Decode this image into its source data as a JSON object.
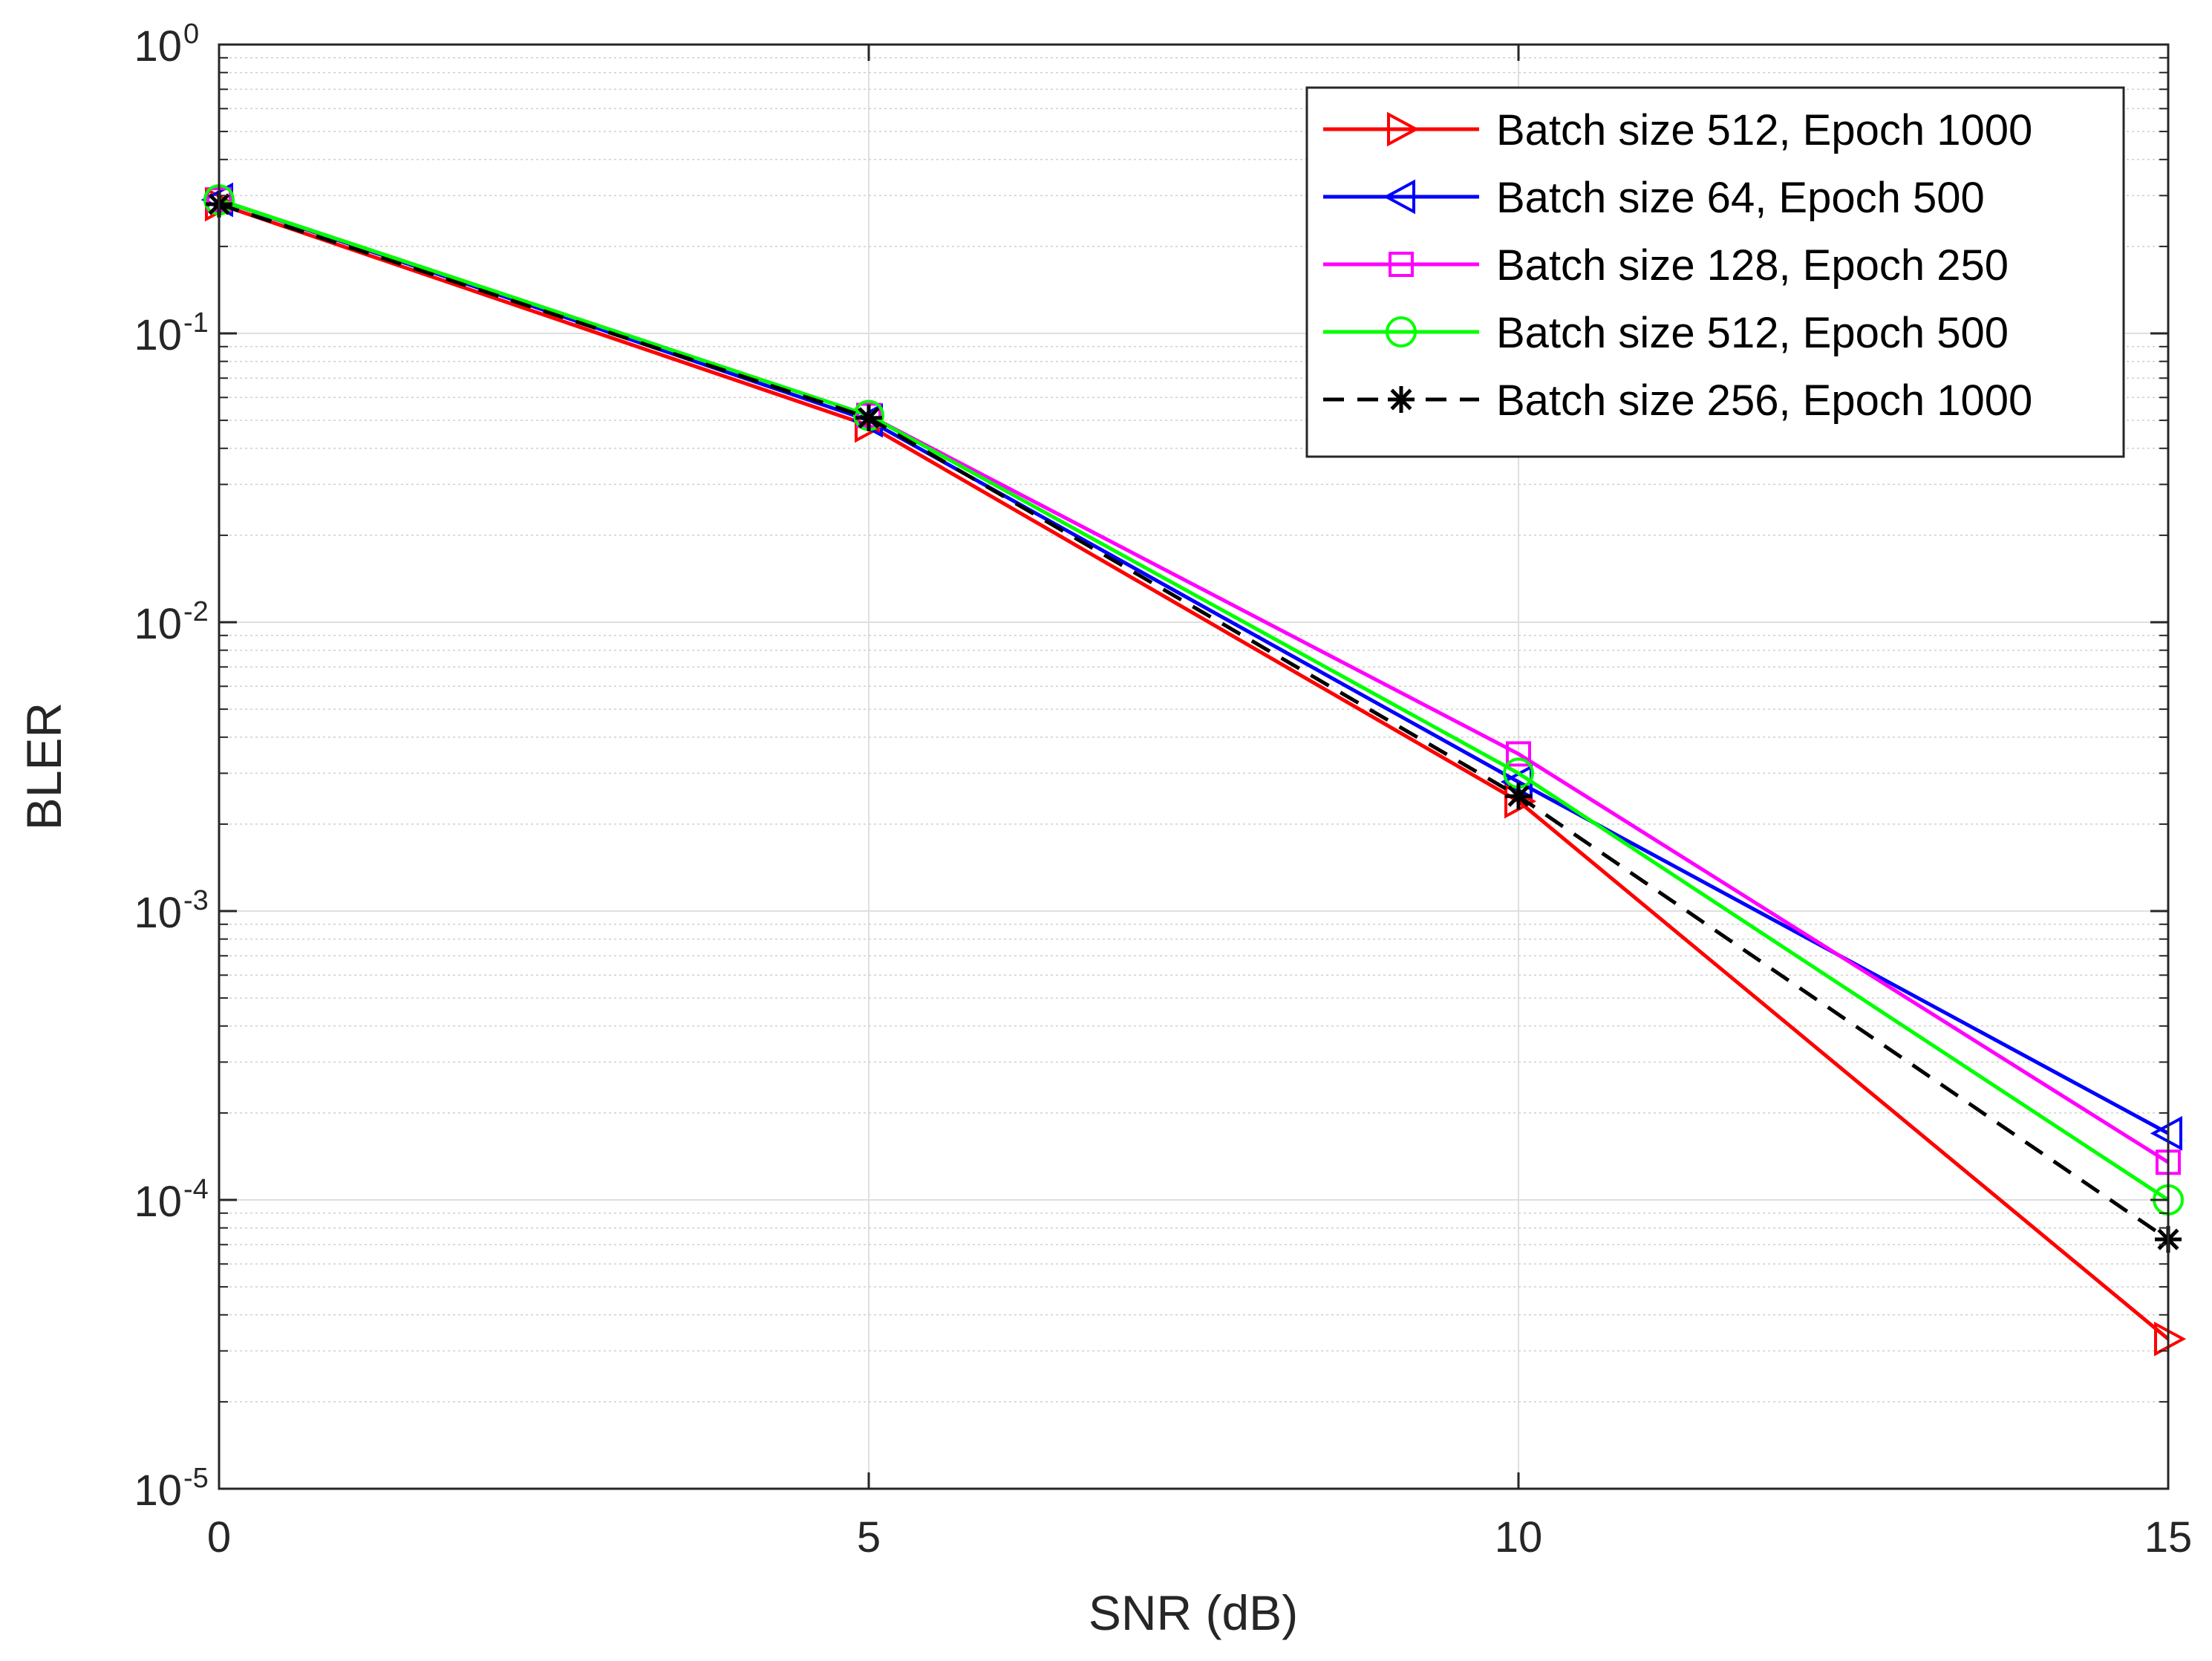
{
  "chart_data": {
    "type": "line",
    "xlabel": "SNR (dB)",
    "ylabel": "BLER",
    "xlim": [
      0,
      15
    ],
    "ylim": [
      1e-05,
      1
    ],
    "yscale": "log",
    "grid": true,
    "legend_position": "top-right",
    "x_ticks": [
      {
        "value": 0,
        "label": "0"
      },
      {
        "value": 5,
        "label": "5"
      },
      {
        "value": 10,
        "label": "10"
      },
      {
        "value": 15,
        "label": "15"
      }
    ],
    "y_ticks": [
      {
        "value": 1,
        "base": "10",
        "exp": "0"
      },
      {
        "value": 0.1,
        "base": "10",
        "exp": "-1"
      },
      {
        "value": 0.01,
        "base": "10",
        "exp": "-2"
      },
      {
        "value": 0.001,
        "base": "10",
        "exp": "-3"
      },
      {
        "value": 0.0001,
        "base": "10",
        "exp": "-4"
      },
      {
        "value": 1e-05,
        "base": "10",
        "exp": "-5"
      }
    ],
    "x": [
      0,
      5,
      10,
      15
    ],
    "series": [
      {
        "name": "Batch size 512, Epoch 1000",
        "color": "#ff0000",
        "marker": "triangle-right",
        "dash": "solid",
        "values": [
          0.28,
          0.048,
          0.0024,
          3.3e-05
        ]
      },
      {
        "name": "Batch size 64, Epoch 500",
        "color": "#0000ff",
        "marker": "triangle-left",
        "dash": "solid",
        "values": [
          0.29,
          0.05,
          0.0028,
          0.00017
        ]
      },
      {
        "name": "Batch size 128, Epoch 250",
        "color": "#ff00ff",
        "marker": "square",
        "dash": "solid",
        "values": [
          0.29,
          0.052,
          0.0035,
          0.000135
        ]
      },
      {
        "name": "Batch size 512, Epoch 500",
        "color": "#00ff00",
        "marker": "circle",
        "dash": "solid",
        "values": [
          0.29,
          0.052,
          0.003,
          0.0001
        ]
      },
      {
        "name": "Batch size 256, Epoch 1000",
        "color": "#000000",
        "marker": "asterisk",
        "dash": "dashed",
        "values": [
          0.28,
          0.051,
          0.0025,
          7.3e-05
        ]
      }
    ]
  }
}
